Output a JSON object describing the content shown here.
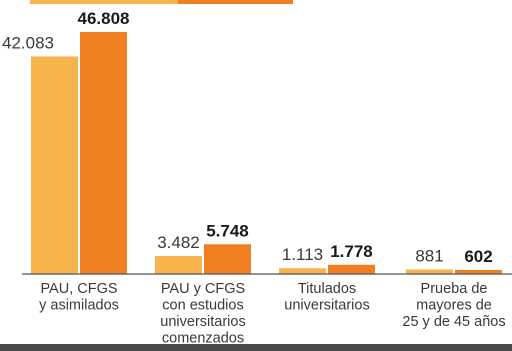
{
  "colors": {
    "series_a": "#f7b44c",
    "series_b": "#f07f22",
    "baseline": "#555555",
    "text": "#3a3a3a"
  },
  "chart_data": {
    "type": "bar",
    "categories": [
      [
        "PAU, CFGS",
        "y asimilados"
      ],
      [
        "PAU y CFGS",
        "con estudios",
        "universitarios",
        "comenzados"
      ],
      [
        "Titulados",
        "universitarios"
      ],
      [
        "Prueba de",
        "mayores de",
        "25 y de 45 años"
      ]
    ],
    "series": [
      {
        "values": [
          42083,
          3482,
          1113,
          881
        ],
        "labels": [
          "42.083",
          "3.482",
          "1.113",
          "881"
        ]
      },
      {
        "values": [
          46808,
          5748,
          1778,
          602
        ],
        "labels": [
          "46.808",
          "5.748",
          "1.778",
          "602"
        ]
      }
    ],
    "ylim": [
      0,
      50000
    ],
    "grid": false,
    "legend": "top (partially cropped, no visible text)"
  }
}
